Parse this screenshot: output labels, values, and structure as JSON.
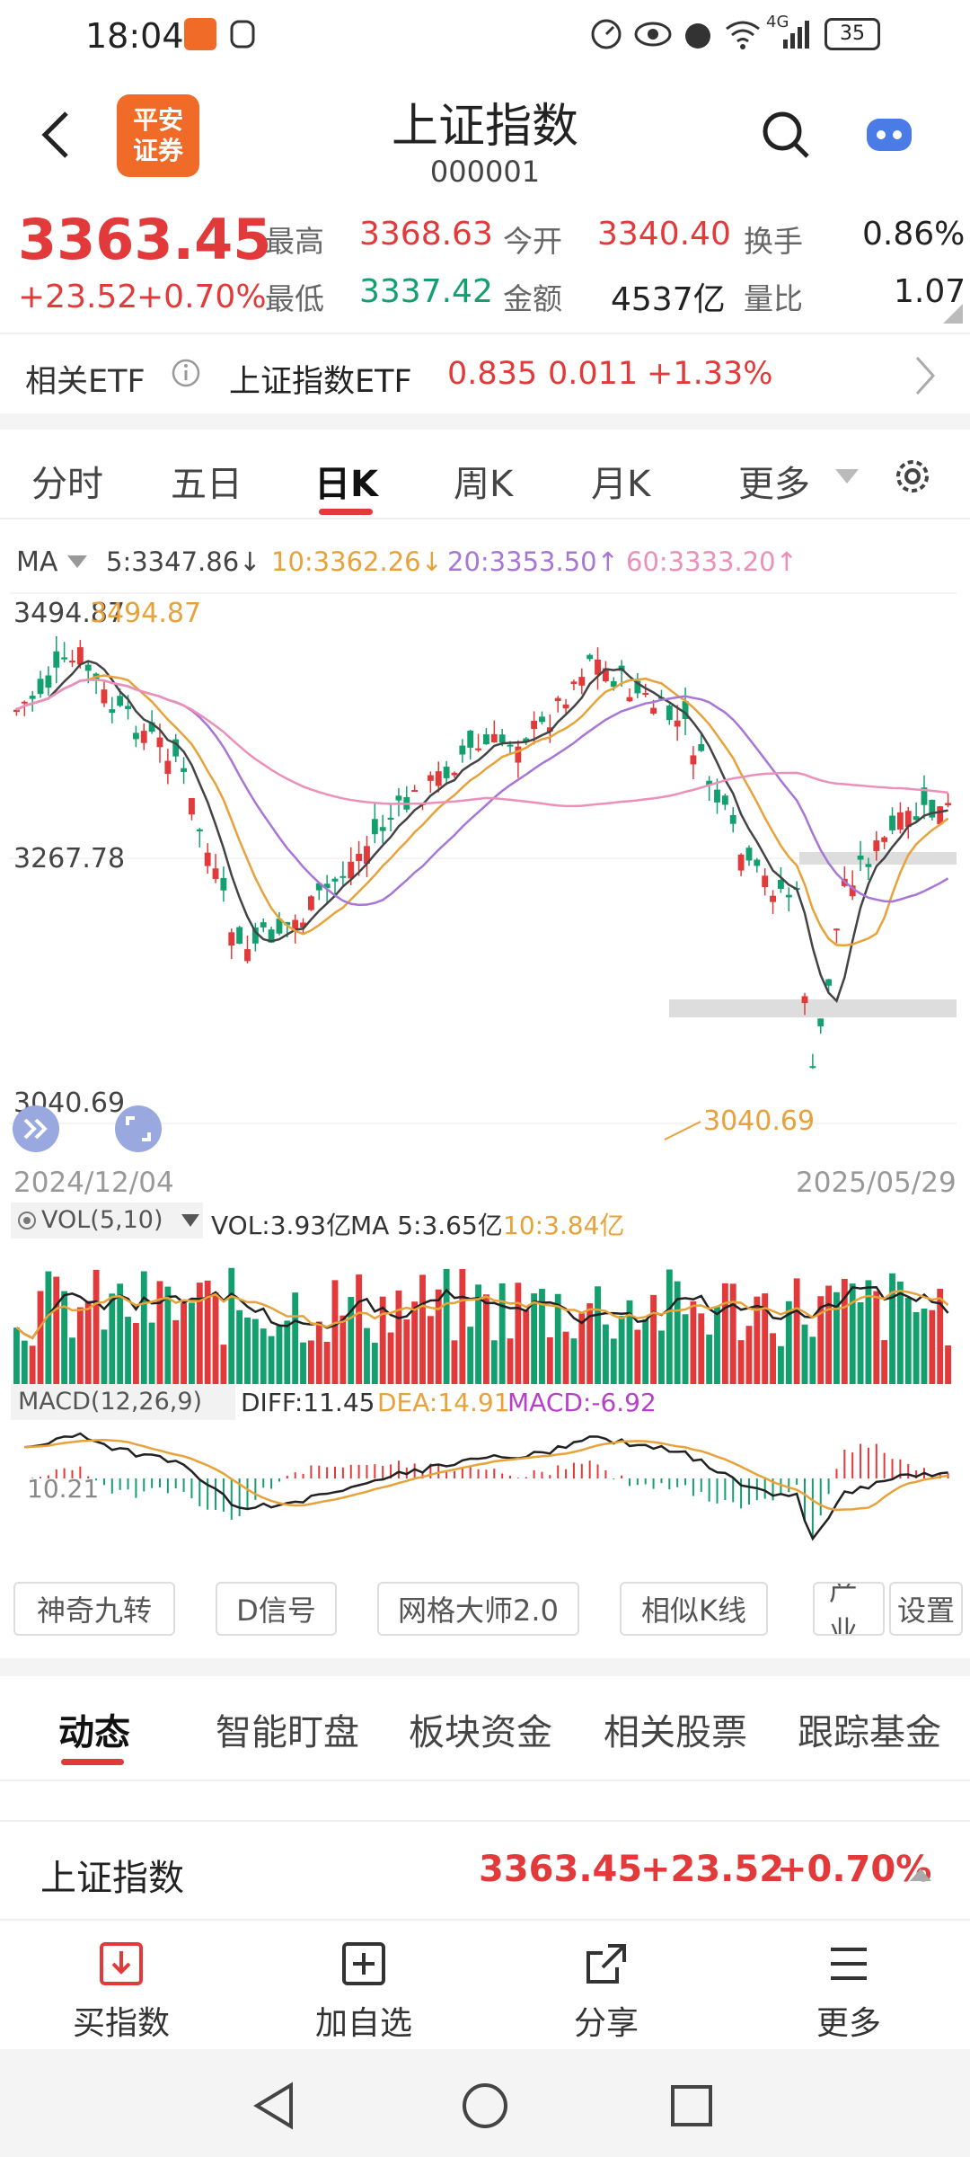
{
  "status": {
    "time": "18:04",
    "network": "4G",
    "battery": "35"
  },
  "header": {
    "logo_text": "平安\n证券",
    "title": "上证指数",
    "code": "000001"
  },
  "quote": {
    "price": "3363.45",
    "change": "+23.52",
    "change_pct": "+0.70%",
    "high_label": "最高",
    "high": "3368.63",
    "low_label": "最低",
    "low": "3337.42",
    "open_label": "今开",
    "open": "3340.40",
    "amount_label": "金额",
    "amount": "4537亿",
    "turnover_label": "换手",
    "turnover": "0.86%",
    "volratio_label": "量比",
    "volratio": "1.07"
  },
  "etf": {
    "label": "相关ETF",
    "name": "上证指数ETF",
    "price": "0.835",
    "change": "0.011",
    "change_pct": "+1.33%"
  },
  "tabs": {
    "t1": "分时",
    "t2": "五日",
    "t3": "日K",
    "t4": "周K",
    "t5": "月K",
    "t6": "更多"
  },
  "ma": {
    "label": "MA",
    "ma5": "5:3347.86↓",
    "ma10": "10:3362.26↓",
    "ma20": "20:3353.50↑",
    "ma60": "60:3333.20↑",
    "c5": "#444444",
    "c10": "#e8a23a",
    "c20": "#a776d6",
    "c60": "#ec8fb9"
  },
  "kline": {
    "y_top": "3494.87",
    "y_top_mark": "3494.87",
    "y_mid": "3267.78",
    "y_bottom": "3040.69",
    "y_bottom_mark": "3040.69",
    "date_start": "2024/12/04",
    "date_end": "2025/05/29"
  },
  "vol": {
    "label": "VOL(5,10)",
    "vol": "VOL:3.93亿",
    "ma5": "MA 5:3.65亿",
    "ma10": "10:3.84亿"
  },
  "macd": {
    "label": "MACD(12,26,9)",
    "diff": "DIFF:11.45",
    "dea": "DEA:14.91",
    "macd": "MACD:-6.92",
    "axis": "10.21"
  },
  "tools": {
    "b1": "神奇九转",
    "b2": "D信号",
    "b3": "网格大师2.0",
    "b4": "相似K线",
    "b5": "产业",
    "b6": "设置"
  },
  "subtabs": {
    "s1": "动态",
    "s2": "智能盯盘",
    "s3": "板块资金",
    "s4": "相关股票",
    "s5": "跟踪基金"
  },
  "index_row": {
    "name": "上证指数",
    "price": "3363.45",
    "change": "+23.52",
    "change_pct": "+0.70%"
  },
  "bottom_nav": {
    "n1": "买指数",
    "n2": "加自选",
    "n3": "分享",
    "n4": "更多"
  }
}
